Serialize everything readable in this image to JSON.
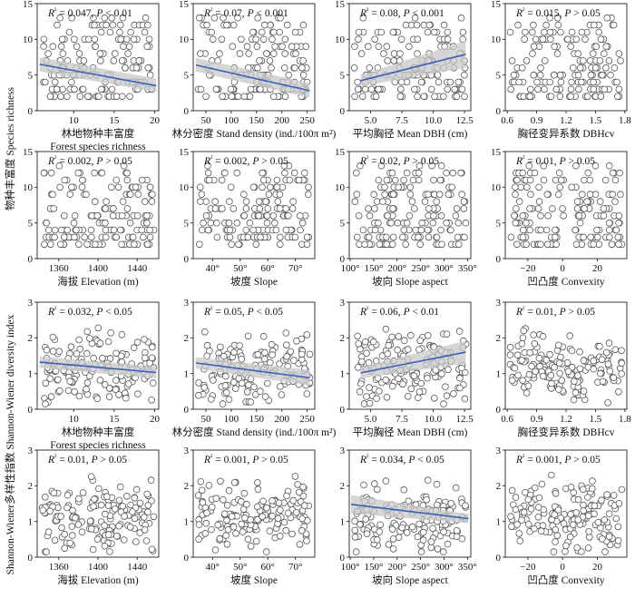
{
  "figure": {
    "y_titles": [
      {
        "key": "richness",
        "text": "物种丰富度 Species richness"
      },
      {
        "key": "diversity",
        "text": "Shannon-Wiener多样性指数 Shannon-Wiener diversity index"
      }
    ]
  },
  "colors": {
    "fit_line": "#3b5fb5",
    "band": "#c8c8c8",
    "marker_edge": "#555555"
  },
  "chart_data": [
    {
      "id": "r1c1",
      "type": "scatter",
      "xlabel": "林地物种丰富度",
      "xlabel2": "Forest species richness",
      "xlim": [
        5.5,
        20.5
      ],
      "ylim": [
        0,
        15
      ],
      "xticks": [
        "10",
        "15",
        "20"
      ],
      "xtick_values": [
        10,
        15,
        20
      ],
      "yticks": [
        "0",
        "5",
        "10",
        "15"
      ],
      "ytick_values": [
        0,
        5,
        10,
        15
      ],
      "r2": "0.047",
      "p": "< 0.01",
      "fit": {
        "x": [
          5.8,
          20.2
        ],
        "y": [
          6.5,
          3.5
        ],
        "ci_low": [
          5.5,
          2.6
        ],
        "ci_high": [
          7.5,
          4.5
        ]
      }
    },
    {
      "id": "r1c2",
      "type": "scatter",
      "xlabel": "林分密度 Stand density  (ind./100π m²)",
      "xlim": [
        25,
        265
      ],
      "ylim": [
        0,
        15
      ],
      "xticks": [
        "50",
        "100",
        "150",
        "200",
        "250"
      ],
      "xtick_values": [
        50,
        100,
        150,
        200,
        250
      ],
      "yticks": [
        "0",
        "5",
        "10",
        "15"
      ],
      "ytick_values": [
        0,
        5,
        10,
        15
      ],
      "r2": "0.07",
      "p": "< 0.001",
      "fit": {
        "x": [
          30,
          255
        ],
        "y": [
          6.4,
          2.8
        ],
        "ci_low": [
          5.5,
          1.8
        ],
        "ci_high": [
          7.4,
          3.9
        ]
      }
    },
    {
      "id": "r1c3",
      "type": "scatter",
      "xlabel": "平均胸径 Mean DBH  (cm)",
      "xlim": [
        3.3,
        13.0
      ],
      "ylim": [
        0,
        15
      ],
      "xticks": [
        "5.0",
        "7.5",
        "10.0",
        "12.5"
      ],
      "xtick_values": [
        5.0,
        7.5,
        10.0,
        12.5
      ],
      "yticks": [
        "0",
        "5",
        "10",
        "15"
      ],
      "ytick_values": [
        0,
        5,
        10,
        15
      ],
      "r2": "0.08",
      "p": "< 0.001",
      "fit": {
        "x": [
          4.2,
          12.6
        ],
        "y": [
          4.2,
          7.9
        ],
        "ci_low": [
          3.4,
          6.0
        ],
        "ci_high": [
          5.0,
          9.8
        ]
      }
    },
    {
      "id": "r1c4",
      "type": "scatter",
      "xlabel": "胸径变异系数 DBHcv",
      "xlim": [
        0.58,
        1.82
      ],
      "ylim": [
        0,
        15
      ],
      "xticks": [
        "0.6",
        "0.9",
        "1.2",
        "1.5",
        "1.8"
      ],
      "xtick_values": [
        0.6,
        0.9,
        1.2,
        1.5,
        1.8
      ],
      "yticks": [
        "0",
        "5",
        "10",
        "15"
      ],
      "ytick_values": [
        0,
        5,
        10,
        15
      ],
      "r2": "0.015",
      "p": "> 0.05",
      "fit": null
    },
    {
      "id": "r2c1",
      "type": "scatter",
      "xlabel": "海拔 Elevation (m)",
      "xlim": [
        1338,
        1462
      ],
      "ylim": [
        0,
        15
      ],
      "xticks": [
        "1360",
        "1400",
        "1440"
      ],
      "xtick_values": [
        1360,
        1400,
        1440
      ],
      "yticks": [
        "0",
        "5",
        "10",
        "15"
      ],
      "ytick_values": [
        0,
        5,
        10,
        15
      ],
      "r2": "0.002",
      "p": "> 0.05",
      "fit": null
    },
    {
      "id": "r2c2",
      "type": "scatter",
      "xlabel": "坡度 Slope",
      "xlim": [
        33,
        77
      ],
      "ylim": [
        0,
        15
      ],
      "xticks": [
        "40°",
        "50°",
        "60°",
        "70°"
      ],
      "xtick_values": [
        40,
        50,
        60,
        70
      ],
      "yticks": [
        "0",
        "5",
        "10",
        "15"
      ],
      "ytick_values": [
        0,
        5,
        10,
        15
      ],
      "r2": "0.002",
      "p": "> 0.05",
      "fit": null
    },
    {
      "id": "r2c3",
      "type": "scatter",
      "xlabel": "坡向 Slope aspect",
      "xlim": [
        98,
        357
      ],
      "ylim": [
        0,
        15
      ],
      "xticks": [
        "100°",
        "150°",
        "200°",
        "250°",
        "300°",
        "350°"
      ],
      "xtick_values": [
        100,
        150,
        200,
        250,
        300,
        350
      ],
      "yticks": [
        "0",
        "5",
        "10",
        "15"
      ],
      "ytick_values": [
        0,
        5,
        10,
        15
      ],
      "r2": "0.02",
      "p": "> 0.05",
      "fit": null
    },
    {
      "id": "r2c4",
      "type": "scatter",
      "xlabel": "凹凸度 Convexity",
      "xlim": [
        -33,
        37
      ],
      "ylim": [
        0,
        15
      ],
      "xticks": [
        "−20",
        "0",
        "20"
      ],
      "xtick_values": [
        -20,
        0,
        20
      ],
      "yticks": [
        "0",
        "5",
        "10",
        "15"
      ],
      "ytick_values": [
        0,
        5,
        10,
        15
      ],
      "r2": "0.01",
      "p": "> 0.05",
      "fit": null
    },
    {
      "id": "r3c1",
      "type": "scatter",
      "xlabel": "林地物种丰富度",
      "xlabel2": "Forest species richness",
      "xlim": [
        5.5,
        20.5
      ],
      "ylim": [
        0,
        3
      ],
      "xticks": [
        "10",
        "15",
        "20"
      ],
      "xtick_values": [
        10,
        15,
        20
      ],
      "yticks": [
        "0",
        "1",
        "2",
        "3"
      ],
      "ytick_values": [
        0,
        1,
        2,
        3
      ],
      "r2": "0.032",
      "p": "< 0.05",
      "fit": {
        "x": [
          5.8,
          20.2
        ],
        "y": [
          1.32,
          1.03
        ],
        "ci_low": [
          1.16,
          0.86
        ],
        "ci_high": [
          1.48,
          1.2
        ]
      }
    },
    {
      "id": "r3c2",
      "type": "scatter",
      "xlabel": "林分密度 Stand density  (ind./100π m²)",
      "xlim": [
        25,
        265
      ],
      "ylim": [
        0,
        3
      ],
      "xticks": [
        "50",
        "100",
        "150",
        "200",
        "250"
      ],
      "xtick_values": [
        50,
        100,
        150,
        200,
        250
      ],
      "yticks": [
        "0",
        "1",
        "2",
        "3"
      ],
      "ytick_values": [
        0,
        1,
        2,
        3
      ],
      "r2": "0.05",
      "p": "< 0.05",
      "fit": {
        "x": [
          30,
          255
        ],
        "y": [
          1.3,
          0.88
        ],
        "ci_low": [
          1.14,
          0.66
        ],
        "ci_high": [
          1.46,
          1.1
        ]
      }
    },
    {
      "id": "r3c3",
      "type": "scatter",
      "xlabel": "平均胸径 Mean DBH  (cm)",
      "xlim": [
        3.3,
        13.0
      ],
      "ylim": [
        0,
        3
      ],
      "xticks": [
        "5.0",
        "7.5",
        "10.0",
        "12.5"
      ],
      "xtick_values": [
        5.0,
        7.5,
        10.0,
        12.5
      ],
      "yticks": [
        "0",
        "1",
        "2",
        "3"
      ],
      "ytick_values": [
        0,
        1,
        2,
        3
      ],
      "r2": "0.06",
      "p": "< 0.01",
      "fit": {
        "x": [
          4.2,
          12.6
        ],
        "y": [
          1.02,
          1.6
        ],
        "ci_low": [
          0.86,
          1.28
        ],
        "ci_high": [
          1.18,
          1.92
        ]
      }
    },
    {
      "id": "r3c4",
      "type": "scatter",
      "xlabel": "胸径变异系数 DBHcv",
      "xlim": [
        0.58,
        1.82
      ],
      "ylim": [
        0,
        3
      ],
      "xticks": [
        "0.6",
        "0.9",
        "1.2",
        "1.5",
        "1.8"
      ],
      "xtick_values": [
        0.6,
        0.9,
        1.2,
        1.5,
        1.8
      ],
      "yticks": [
        "0",
        "1",
        "2",
        "3"
      ],
      "ytick_values": [
        0,
        1,
        2,
        3
      ],
      "r2": "0.01",
      "p": "> 0.05",
      "fit": null
    },
    {
      "id": "r4c1",
      "type": "scatter",
      "xlabel": "海拔 Elevation (m)",
      "xlim": [
        1338,
        1462
      ],
      "ylim": [
        0,
        3
      ],
      "xticks": [
        "1360",
        "1400",
        "1440"
      ],
      "xtick_values": [
        1360,
        1400,
        1440
      ],
      "yticks": [
        "0",
        "1",
        "2",
        "3"
      ],
      "ytick_values": [
        0,
        1,
        2,
        3
      ],
      "r2": "0.01",
      "p": "> 0.05",
      "fit": null
    },
    {
      "id": "r4c2",
      "type": "scatter",
      "xlabel": "坡度 Slope",
      "xlim": [
        33,
        77
      ],
      "ylim": [
        0,
        3
      ],
      "xticks": [
        "40°",
        "50°",
        "60°",
        "70°"
      ],
      "xtick_values": [
        40,
        50,
        60,
        70
      ],
      "yticks": [
        "0",
        "1",
        "2",
        "3"
      ],
      "ytick_values": [
        0,
        1,
        2,
        3
      ],
      "r2": "0.001",
      "p": "> 0.05",
      "fit": null
    },
    {
      "id": "r4c3",
      "type": "scatter",
      "xlabel": "坡向 Slope aspect",
      "xlim": [
        98,
        357
      ],
      "ylim": [
        0,
        3
      ],
      "xticks": [
        "100°",
        "150°",
        "200°",
        "250°",
        "300°",
        "350°"
      ],
      "xtick_values": [
        100,
        150,
        200,
        250,
        300,
        350
      ],
      "yticks": [
        "0",
        "1",
        "2",
        "3"
      ],
      "ytick_values": [
        0,
        1,
        2,
        3
      ],
      "r2": "0.034",
      "p": "< 0.05",
      "fit": {
        "x": [
          102,
          352
        ],
        "y": [
          1.48,
          1.08
        ],
        "ci_low": [
          1.22,
          0.95
        ],
        "ci_high": [
          1.74,
          1.21
        ]
      }
    },
    {
      "id": "r4c4",
      "type": "scatter",
      "xlabel": "凹凸度 Convexity",
      "xlim": [
        -33,
        37
      ],
      "ylim": [
        0,
        3
      ],
      "xticks": [
        "−20",
        "0",
        "20"
      ],
      "xtick_values": [
        -20,
        0,
        20
      ],
      "yticks": [
        "0",
        "1",
        "2",
        "3"
      ],
      "ytick_values": [
        0,
        1,
        2,
        3
      ],
      "r2": "0.001",
      "p": "> 0.05",
      "fit": null
    }
  ]
}
